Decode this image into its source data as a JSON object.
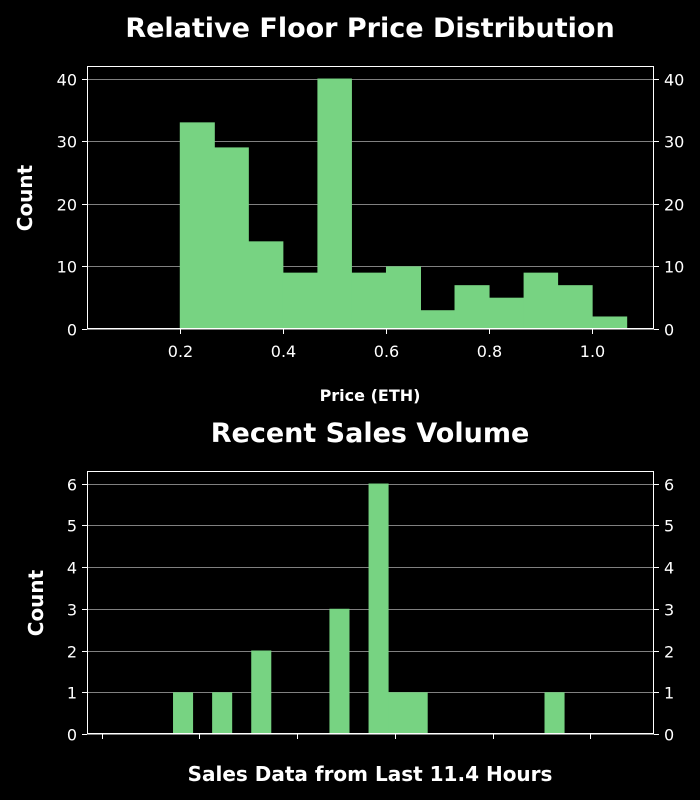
{
  "chart_data": [
    {
      "type": "bar",
      "title": "Relative Floor Price Distribution",
      "xlabel": "Price (ETH)",
      "ylabel": "Count",
      "xlim": [
        0.02,
        1.12
      ],
      "ylim": [
        0,
        42
      ],
      "xticks": [
        0.2,
        0.4,
        0.6,
        0.8,
        1.0
      ],
      "xtick_labels": [
        "0.2",
        "0.4",
        "0.6",
        "0.8",
        "1.0"
      ],
      "yticks": [
        0,
        10,
        20,
        30,
        40
      ],
      "ytick_labels": [
        "0",
        "10",
        "20",
        "30",
        "40"
      ],
      "bin_edges": [
        0.2,
        0.267,
        0.333,
        0.4,
        0.467,
        0.533,
        0.6,
        0.667,
        0.733,
        0.8,
        0.867,
        0.933,
        1.0,
        1.067
      ],
      "values": [
        33,
        29,
        14,
        9,
        40,
        9,
        10,
        3,
        7,
        5,
        9,
        7,
        2
      ],
      "grid": true,
      "color": "#77d382"
    },
    {
      "type": "bar",
      "title": "Recent Sales Volume",
      "xlabel": "Sales Data from Last 11.4 Hours",
      "ylabel": "Count",
      "xlim": [
        0,
        29
      ],
      "ylim": [
        0,
        6.3
      ],
      "xticks": [
        0.75,
        5.75,
        10.75,
        15.75,
        20.75,
        25.75
      ],
      "yticks": [
        0,
        1,
        2,
        3,
        4,
        5,
        6
      ],
      "ytick_labels": [
        "0",
        "1",
        "2",
        "3",
        "4",
        "5",
        "6"
      ],
      "bin_edges": [
        4.4,
        5.4,
        6.4,
        7.4,
        8.4,
        9.4,
        10.4,
        11.4,
        12.4,
        13.4,
        14.4,
        15.4,
        16.4,
        17.4,
        18.4,
        19.4,
        20.4,
        21.4,
        22.4,
        23.4,
        24.4
      ],
      "values": [
        1,
        0,
        1,
        0,
        2,
        0,
        0,
        0,
        3,
        0,
        6,
        1,
        1,
        0,
        0,
        0,
        0,
        0,
        0,
        1
      ],
      "grid": true,
      "color": "#77d382"
    }
  ]
}
